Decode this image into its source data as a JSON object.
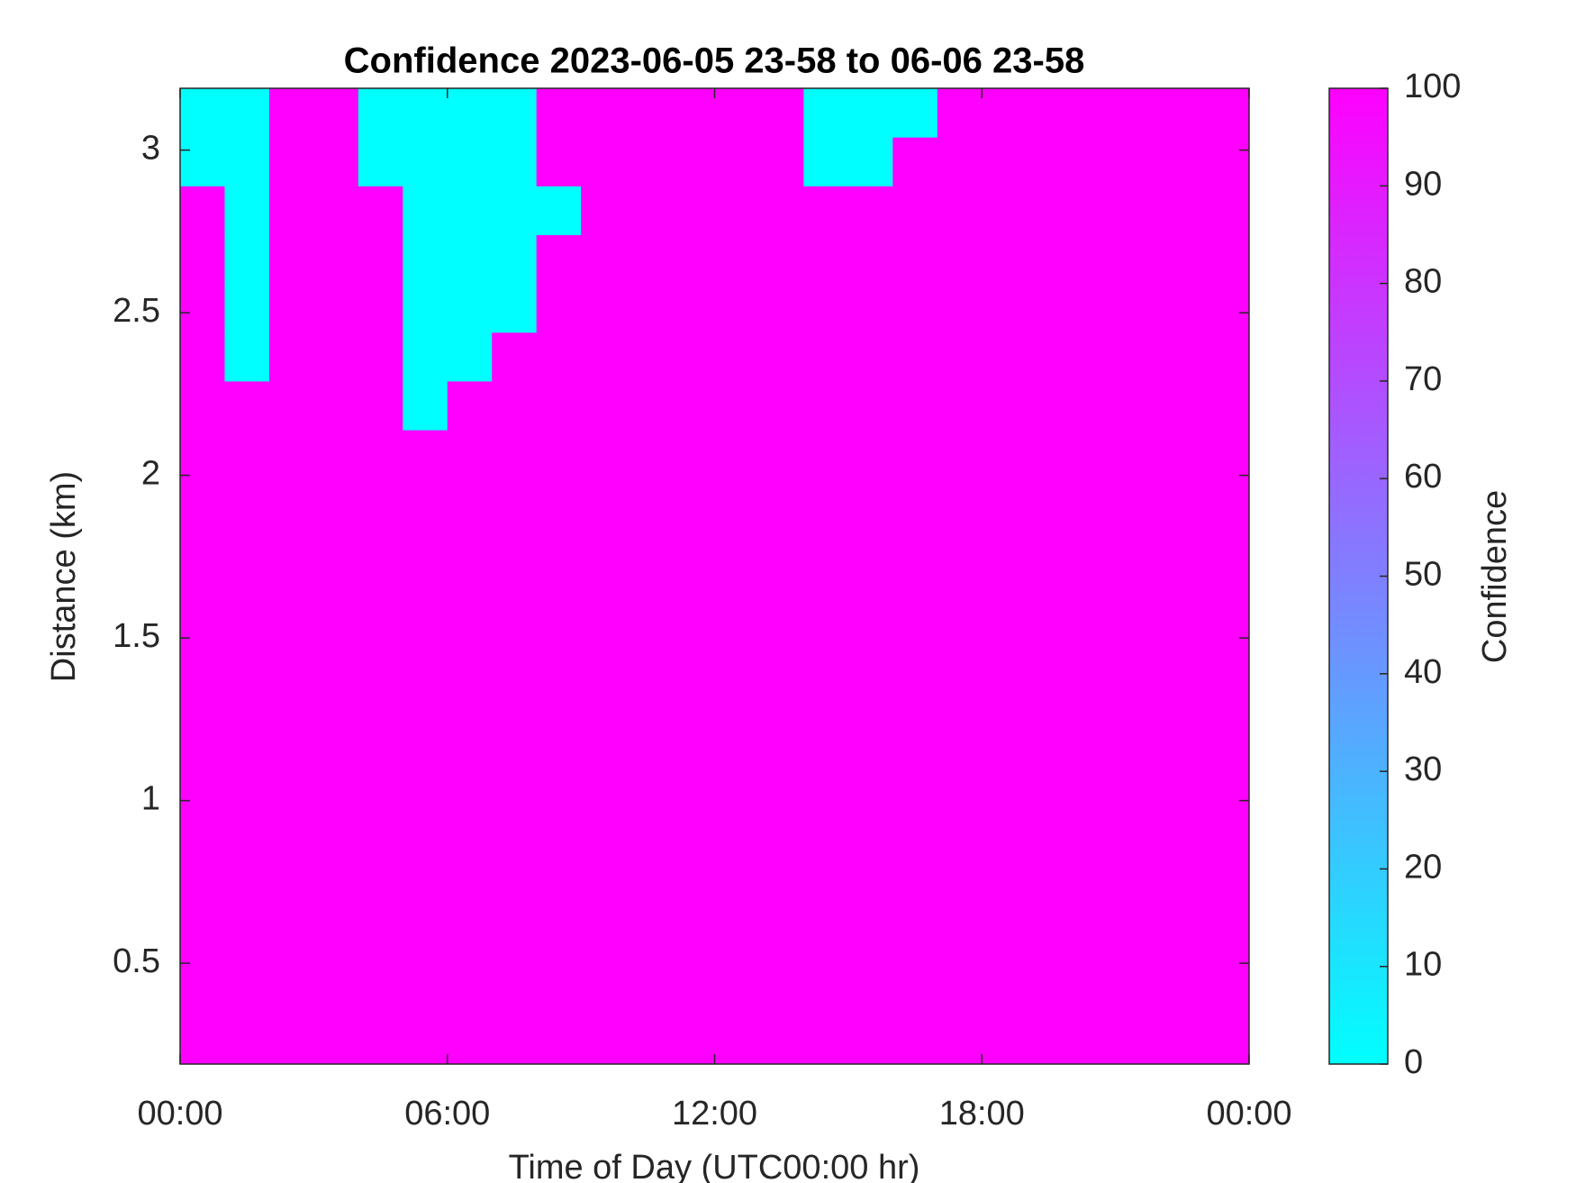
{
  "chart_data": {
    "type": "heatmap",
    "title": "Confidence 2023-06-05 23-58 to 06-06 23-58",
    "x_label": "Time of Day (UTC00:00 hr)",
    "y_label": "Distance (km)",
    "colorbar_label": "Confidence",
    "colormap": [
      "#00ffff",
      "#ff00ff"
    ],
    "clim": [
      0,
      100
    ],
    "cticks": [
      0,
      10,
      20,
      30,
      40,
      50,
      60,
      70,
      80,
      90,
      100
    ],
    "xlim": [
      0,
      24
    ],
    "xticks": [
      {
        "value": 0,
        "label": "00:00"
      },
      {
        "value": 6,
        "label": "06:00"
      },
      {
        "value": 12,
        "label": "12:00"
      },
      {
        "value": 18,
        "label": "18:00"
      },
      {
        "value": 24,
        "label": "00:00"
      }
    ],
    "ylim": [
      0.19,
      3.19
    ],
    "yticks": [
      0.5,
      1,
      1.5,
      2,
      2.5,
      3
    ],
    "x_bins": [
      0,
      1,
      2,
      3,
      4,
      5,
      6,
      7,
      8,
      9,
      10,
      11,
      12,
      13,
      14,
      15,
      16,
      17,
      18,
      19,
      20,
      21,
      22,
      23,
      24
    ],
    "y_bins": [
      0.19,
      0.34,
      0.49,
      0.64,
      0.79,
      0.94,
      1.09,
      1.24,
      1.39,
      1.54,
      1.69,
      1.84,
      1.99,
      2.14,
      2.29,
      2.44,
      2.59,
      2.74,
      2.89,
      3.04,
      3.19
    ],
    "z": [
      [
        100,
        100,
        100,
        100,
        100,
        100,
        100,
        100,
        100,
        100,
        100,
        100,
        100,
        100,
        100,
        100,
        100,
        100,
        100,
        100,
        100,
        100,
        100,
        100
      ],
      [
        100,
        100,
        100,
        100,
        100,
        100,
        100,
        100,
        100,
        100,
        100,
        100,
        100,
        100,
        100,
        100,
        100,
        100,
        100,
        100,
        100,
        100,
        100,
        100
      ],
      [
        100,
        100,
        100,
        100,
        100,
        100,
        100,
        100,
        100,
        100,
        100,
        100,
        100,
        100,
        100,
        100,
        100,
        100,
        100,
        100,
        100,
        100,
        100,
        100
      ],
      [
        100,
        100,
        100,
        100,
        100,
        100,
        100,
        100,
        100,
        100,
        100,
        100,
        100,
        100,
        100,
        100,
        100,
        100,
        100,
        100,
        100,
        100,
        100,
        100
      ],
      [
        100,
        100,
        100,
        100,
        100,
        100,
        100,
        100,
        100,
        100,
        100,
        100,
        100,
        100,
        100,
        100,
        100,
        100,
        100,
        100,
        100,
        100,
        100,
        100
      ],
      [
        100,
        100,
        100,
        100,
        100,
        100,
        100,
        100,
        100,
        100,
        100,
        100,
        100,
        100,
        100,
        100,
        100,
        100,
        100,
        100,
        100,
        100,
        100,
        100
      ],
      [
        100,
        100,
        100,
        100,
        100,
        100,
        100,
        100,
        100,
        100,
        100,
        100,
        100,
        100,
        100,
        100,
        100,
        100,
        100,
        100,
        100,
        100,
        100,
        100
      ],
      [
        100,
        100,
        100,
        100,
        100,
        100,
        100,
        100,
        100,
        100,
        100,
        100,
        100,
        100,
        100,
        100,
        100,
        100,
        100,
        100,
        100,
        100,
        100,
        100
      ],
      [
        100,
        100,
        100,
        100,
        100,
        100,
        100,
        100,
        100,
        100,
        100,
        100,
        100,
        100,
        100,
        100,
        100,
        100,
        100,
        100,
        100,
        100,
        100,
        100
      ],
      [
        100,
        100,
        100,
        100,
        100,
        100,
        100,
        100,
        100,
        100,
        100,
        100,
        100,
        100,
        100,
        100,
        100,
        100,
        100,
        100,
        100,
        100,
        100,
        100
      ],
      [
        100,
        100,
        100,
        100,
        100,
        100,
        100,
        100,
        100,
        100,
        100,
        100,
        100,
        100,
        100,
        100,
        100,
        100,
        100,
        100,
        100,
        100,
        100,
        100
      ],
      [
        100,
        100,
        100,
        100,
        100,
        100,
        100,
        100,
        100,
        100,
        100,
        100,
        100,
        100,
        100,
        100,
        100,
        100,
        100,
        100,
        100,
        100,
        100,
        100
      ],
      [
        100,
        100,
        100,
        100,
        100,
        100,
        100,
        100,
        100,
        100,
        100,
        100,
        100,
        100,
        100,
        100,
        100,
        100,
        100,
        100,
        100,
        100,
        100,
        100
      ],
      [
        100,
        100,
        100,
        100,
        100,
        0,
        100,
        100,
        100,
        100,
        100,
        100,
        100,
        100,
        100,
        100,
        100,
        100,
        100,
        100,
        100,
        100,
        100,
        100
      ],
      [
        100,
        0,
        100,
        100,
        100,
        0,
        0,
        100,
        100,
        100,
        100,
        100,
        100,
        100,
        100,
        100,
        100,
        100,
        100,
        100,
        100,
        100,
        100,
        100
      ],
      [
        100,
        0,
        100,
        100,
        100,
        0,
        0,
        0,
        100,
        100,
        100,
        100,
        100,
        100,
        100,
        100,
        100,
        100,
        100,
        100,
        100,
        100,
        100,
        100
      ],
      [
        100,
        0,
        100,
        100,
        100,
        0,
        0,
        0,
        100,
        100,
        100,
        100,
        100,
        100,
        100,
        100,
        100,
        100,
        100,
        100,
        100,
        100,
        100,
        100
      ],
      [
        100,
        0,
        100,
        100,
        100,
        0,
        0,
        0,
        0,
        100,
        100,
        100,
        100,
        100,
        100,
        100,
        100,
        100,
        100,
        100,
        100,
        100,
        100,
        100
      ],
      [
        0,
        0,
        100,
        100,
        0,
        0,
        0,
        0,
        100,
        100,
        100,
        100,
        100,
        100,
        0,
        0,
        100,
        100,
        100,
        100,
        100,
        100,
        100,
        100
      ],
      [
        0,
        0,
        100,
        100,
        0,
        0,
        0,
        0,
        100,
        100,
        100,
        100,
        100,
        100,
        0,
        0,
        0,
        100,
        100,
        100,
        100,
        100,
        100,
        100
      ]
    ]
  }
}
